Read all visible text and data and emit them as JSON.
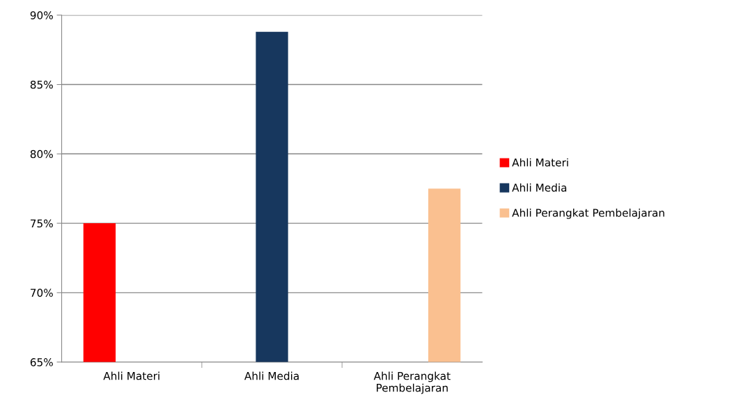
{
  "chart_data": {
    "type": "bar",
    "categories": [
      "Ahli Materi",
      "Ahli Media",
      "Ahli Perangkat\nPembelajaran"
    ],
    "series": [
      {
        "name": "Ahli Materi",
        "color": "#ff0000",
        "values": [
          75,
          null,
          null
        ]
      },
      {
        "name": "Ahli Media",
        "color": "#17375e",
        "values": [
          null,
          88.8,
          null
        ]
      },
      {
        "name": "Ahli Perangkat Pembelajaran",
        "color": "#fac090",
        "values": [
          null,
          null,
          77.5
        ]
      }
    ],
    "ylim": [
      65,
      90
    ],
    "yticks": [
      {
        "value": 65,
        "label": "65%"
      },
      {
        "value": 70,
        "label": "70%"
      },
      {
        "value": 75,
        "label": "75%"
      },
      {
        "value": 80,
        "label": "80%"
      },
      {
        "value": 85,
        "label": "85%"
      },
      {
        "value": 90,
        "label": "90%"
      }
    ],
    "grid": "y",
    "legend": "right"
  }
}
